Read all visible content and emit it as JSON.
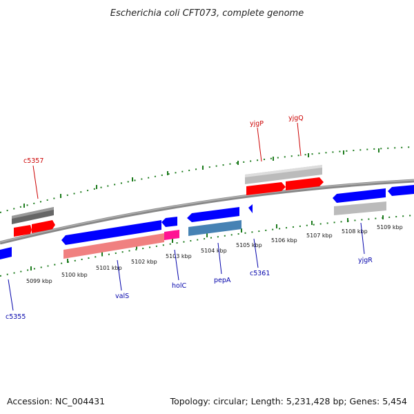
{
  "title": "Escherichia coli CFT073, complete genome",
  "footer": {
    "accession": "Accession: NC_004431",
    "summary": "Topology: circular; Length: 5,231,428 bp; Genes: 5,454"
  },
  "kbp_labels": [
    "5099 kbp",
    "5100 kbp",
    "5101 kbp",
    "5102 kbp",
    "5103 kbp",
    "5104 kbp",
    "5105 kbp",
    "5106 kbp",
    "5107 kbp",
    "5108 kbp",
    "5109 kbp"
  ],
  "gene_labels": {
    "c5357": "c5357",
    "yjgP": "yjgP",
    "yjgQ": "yjgQ",
    "c5355": "c5355",
    "valS": "valS",
    "holC": "holC",
    "pepA": "pepA",
    "c5361": "c5361",
    "yjgR": "yjgR"
  },
  "colors": {
    "forward_cds": "#ff0000",
    "reverse_cds": "#0000ff",
    "forward_gene": "#bbbbbb",
    "forward_gene_dark": "#666666",
    "reverse_gene_light": "#f08080",
    "reverse_gene_pink": "#ff1493",
    "reverse_gene_steel": "#4682b4",
    "backbone": "#888888",
    "tick": "#1a7a1a",
    "red_label": "#cc0000",
    "blue_label": "#0000aa"
  }
}
